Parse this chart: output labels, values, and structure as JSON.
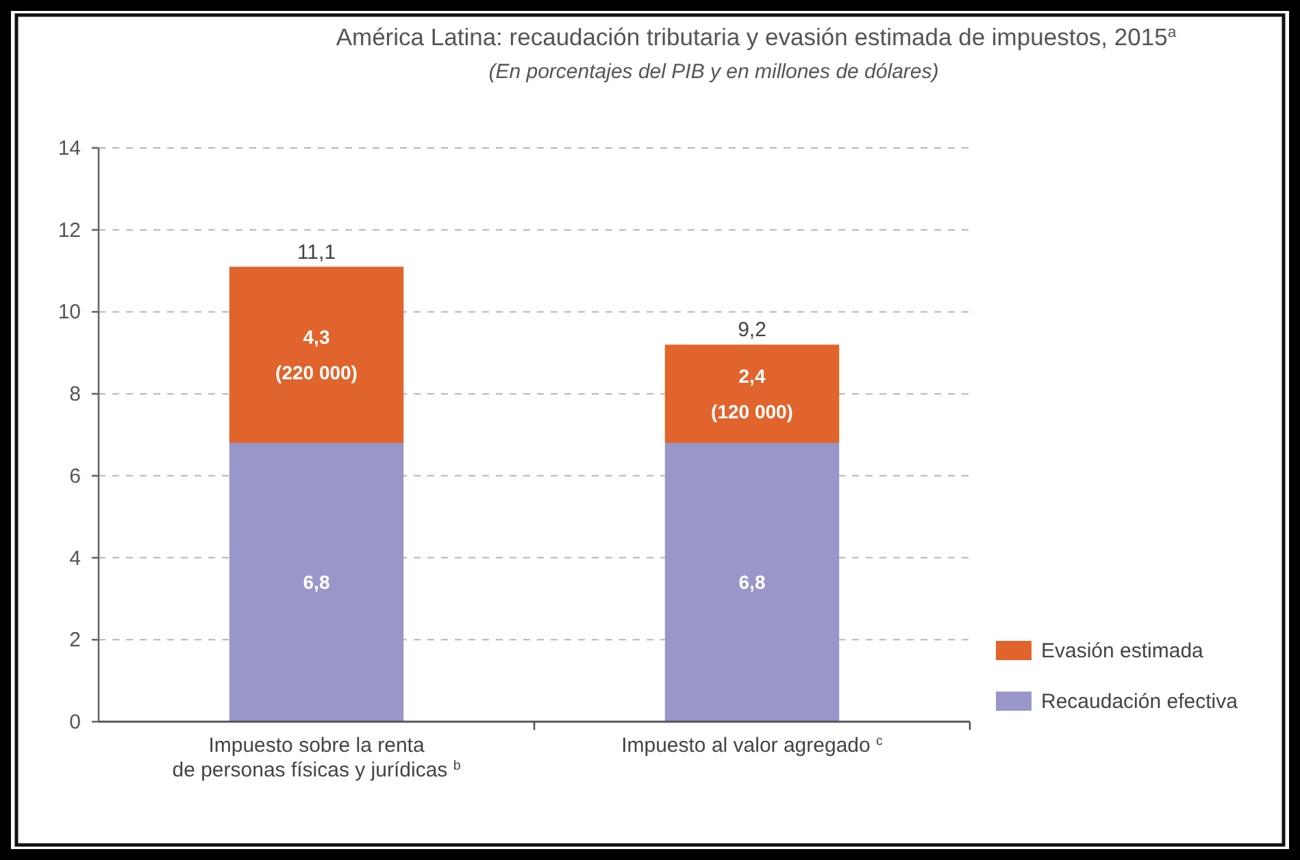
{
  "chart_data": {
    "type": "bar",
    "title": "América Latina: recaudación tributaria y evasión estimada de impuestos, 2015$^{a}$",
    "subtitle": "(En porcentajes del PIB y en millones de dólares)",
    "categories": [
      "Impuesto sobre la renta\nde personas físicas y jurídicas $^{b}$",
      "Impuesto al valor agregado $^{c}$"
    ],
    "series": [
      {
        "name": "Recaudación efectiva",
        "color": "#9997c9",
        "values": [
          6.8,
          6.8
        ],
        "value_labels": [
          "6,8",
          "6,8"
        ]
      },
      {
        "name": "Evasión estimada",
        "color": "#e0642b",
        "values": [
          4.3,
          2.4
        ],
        "value_labels": [
          "4,3\n(220 000)",
          "2,4\n(120 000)"
        ]
      }
    ],
    "stacked": true,
    "totals": [
      "11,1",
      "9,2"
    ],
    "ylim": [
      0,
      14
    ],
    "yticks": [
      0,
      2,
      4,
      6,
      8,
      10,
      12,
      14
    ],
    "grid": "y",
    "legend": "bottom right"
  }
}
